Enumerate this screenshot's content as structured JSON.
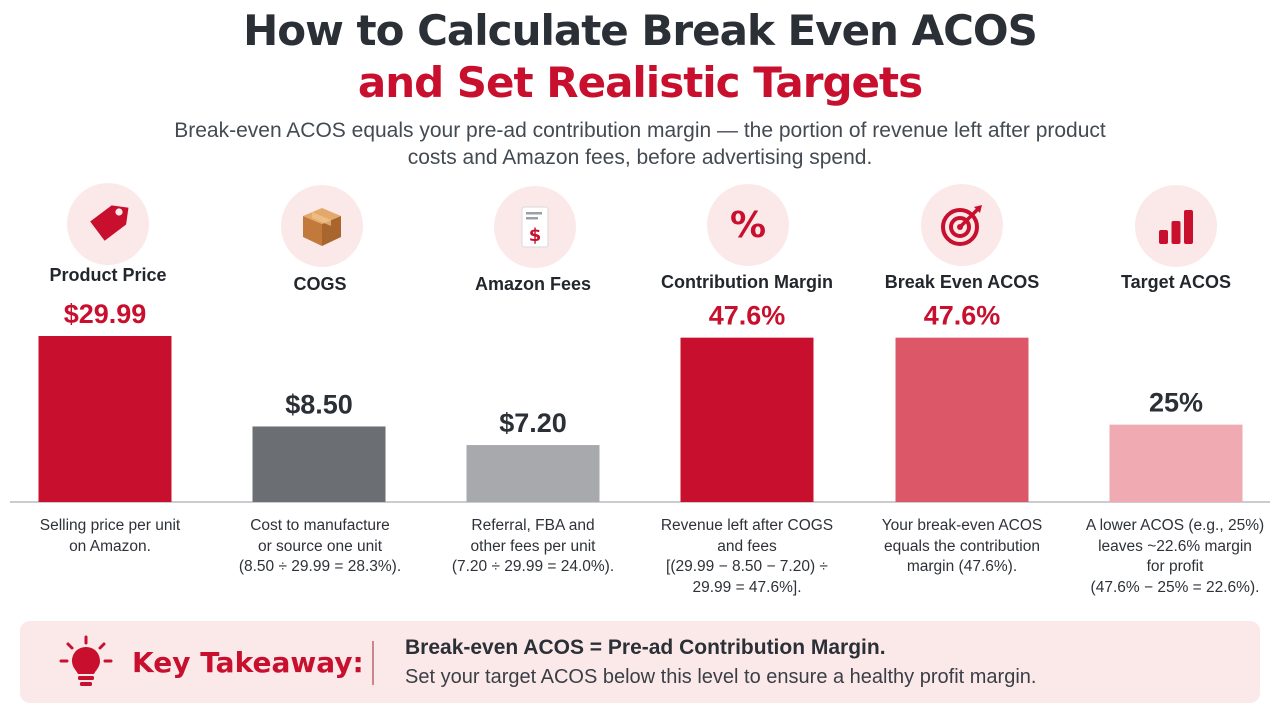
{
  "header": {
    "title_line1": "How to Calculate Break Even ACOS",
    "title_line2": "and Set Realistic Targets",
    "subtitle_line1": "Break-even ACOS equals your pre-ad contribution margin — the portion of revenue left after product",
    "subtitle_line2": "costs and Amazon fees, before advertising spend."
  },
  "colors": {
    "accent_red": "#c8102e",
    "dark_text": "#2b2f36",
    "takeaway_bg": "#fbe9ea"
  },
  "columns": [
    {
      "label": "Product Price",
      "icon": "price-tag-icon",
      "desc": [
        "Selling price per unit",
        "on Amazon."
      ]
    },
    {
      "label": "COGS",
      "icon": "cardboard-box-icon",
      "desc": [
        "Cost to manufacture",
        "or source one unit",
        "(8.50 ÷ 29.99 = 28.3%)."
      ]
    },
    {
      "label": "Amazon Fees",
      "icon": "invoice-dollar-icon",
      "desc": [
        "Referral, FBA and",
        "other fees per unit",
        "(7.20 ÷ 29.99 = 24.0%)."
      ]
    },
    {
      "label": "Contribution Margin",
      "icon": "percent-icon",
      "desc": [
        "Revenue left after COGS",
        "and fees",
        "[(29.99 − 8.50 − 7.20) ÷",
        "29.99 = 47.6%]."
      ]
    },
    {
      "label": "Break Even ACOS",
      "icon": "target-icon",
      "desc": [
        "Your break-even ACOS",
        "equals the contribution",
        "margin (47.6%)."
      ]
    },
    {
      "label": "Target ACOS",
      "icon": "bar-chart-icon",
      "desc": [
        "A lower ACOS (e.g., 25%)",
        "leaves ~22.6% margin",
        "for profit",
        "(47.6% − 25% = 22.6%)."
      ]
    }
  ],
  "chart_data": {
    "type": "bar",
    "categories": [
      "Product Price",
      "COGS",
      "Amazon Fees",
      "Contribution Margin",
      "Break Even ACOS",
      "Target ACOS"
    ],
    "values": [
      29.99,
      8.5,
      7.2,
      47.6,
      47.6,
      25
    ],
    "value_labels": [
      "$29.99",
      "$8.50",
      "$7.20",
      "47.6%",
      "47.6%",
      "25%"
    ],
    "bar_colors": [
      "#c8102e",
      "#6b6e73",
      "#a7a9ad",
      "#c8102e",
      "#dc5868",
      "#f0aab1"
    ],
    "label_colors": [
      "#c8102e",
      "#2b2f36",
      "#2b2f36",
      "#c8102e",
      "#c8102e",
      "#2b2f36"
    ],
    "relative_height": [
      1.0,
      0.455,
      0.343,
      0.99,
      0.99,
      0.466
    ],
    "grid": false,
    "legend": "none"
  },
  "takeaway": {
    "label": "Key Takeaway:",
    "icon": "lightbulb-icon",
    "line1": "Break-even ACOS = Pre-ad Contribution Margin.",
    "line2": "Set your target ACOS below this level to ensure a healthy profit margin."
  }
}
